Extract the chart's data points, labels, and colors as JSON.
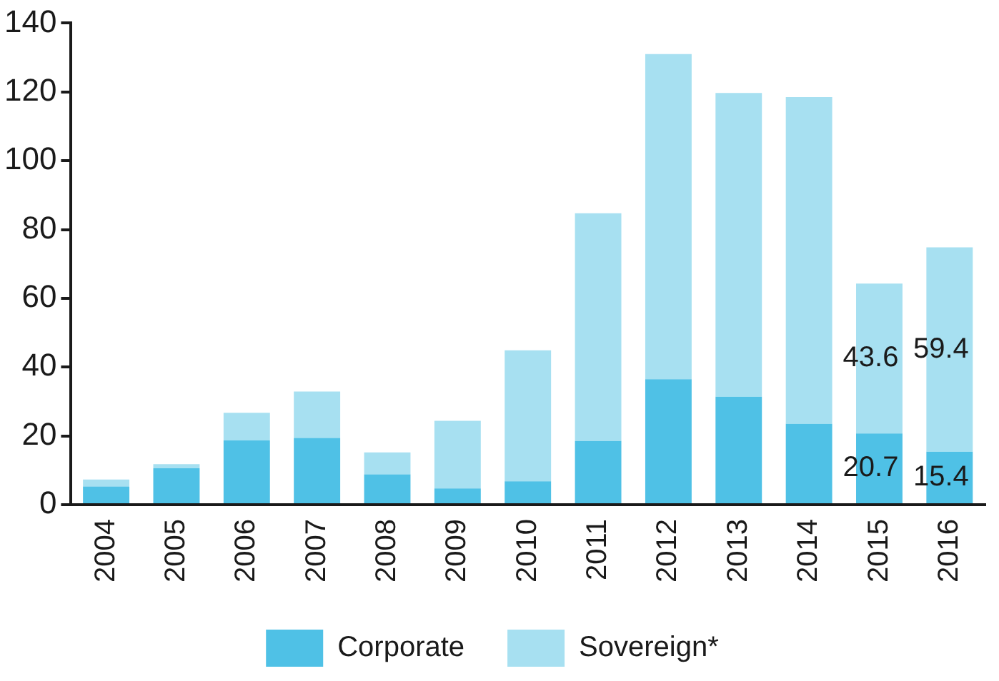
{
  "chart_data": {
    "type": "bar",
    "stacked": true,
    "categories": [
      "2004",
      "2005",
      "2006",
      "2007",
      "2008",
      "2009",
      "2010",
      "2011",
      "2012",
      "2013",
      "2014",
      "2015",
      "2016"
    ],
    "series": [
      {
        "name": "Corporate",
        "color": "#4fc1e6",
        "values": [
          5.3,
          10.6,
          18.7,
          19.4,
          8.8,
          4.7,
          6.8,
          18.5,
          36.5,
          31.4,
          23.5,
          20.7,
          15.4
        ],
        "value_labels": [
          null,
          null,
          null,
          null,
          null,
          null,
          null,
          null,
          null,
          null,
          null,
          "20.7",
          "15.4"
        ]
      },
      {
        "name": "Sovereign*",
        "color": "#a7e0f1",
        "values": [
          2.0,
          1.2,
          8.0,
          13.5,
          6.4,
          19.7,
          38.1,
          66.2,
          94.5,
          88.3,
          95.0,
          43.6,
          59.4
        ],
        "value_labels": [
          null,
          null,
          null,
          null,
          null,
          null,
          null,
          null,
          null,
          null,
          null,
          "43.6",
          "59.4"
        ]
      }
    ],
    "ylim": [
      0,
      140
    ],
    "yticks": [
      0,
      20,
      40,
      60,
      80,
      100,
      120,
      140
    ],
    "grid": false,
    "legend": "bottom"
  }
}
